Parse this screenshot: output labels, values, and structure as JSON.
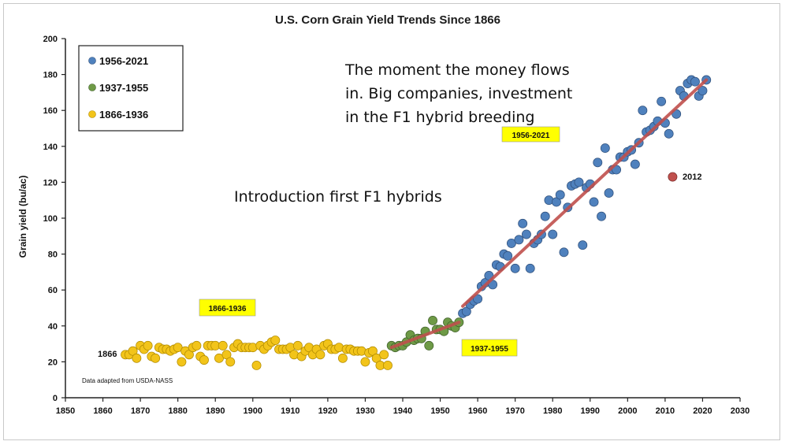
{
  "chart_data": {
    "type": "scatter",
    "title": "U.S. Corn Grain Yield Trends Since 1866",
    "ylabel": "Grain yield (bu/ac)",
    "xlabel": "",
    "xlim": [
      1850,
      2030
    ],
    "ylim": [
      0,
      200
    ],
    "x_ticks": [
      1850,
      1860,
      1870,
      1880,
      1890,
      1900,
      1910,
      1920,
      1930,
      1940,
      1950,
      1960,
      1970,
      1980,
      1990,
      2000,
      2010,
      2020,
      2030
    ],
    "y_ticks": [
      0,
      20,
      40,
      60,
      80,
      100,
      120,
      140,
      160,
      180,
      200
    ],
    "grid": false,
    "legend_position": "top-left",
    "series": [
      {
        "name": "1956-2021",
        "color": "#4f81bd",
        "x": [
          1956,
          1957,
          1958,
          1959,
          1960,
          1961,
          1962,
          1963,
          1964,
          1965,
          1966,
          1967,
          1968,
          1969,
          1970,
          1971,
          1972,
          1973,
          1974,
          1975,
          1976,
          1977,
          1978,
          1979,
          1980,
          1981,
          1982,
          1983,
          1984,
          1985,
          1986,
          1987,
          1988,
          1989,
          1990,
          1991,
          1992,
          1993,
          1994,
          1995,
          1996,
          1997,
          1998,
          1999,
          2000,
          2001,
          2002,
          2003,
          2004,
          2005,
          2006,
          2007,
          2008,
          2009,
          2010,
          2011,
          2013,
          2014,
          2015,
          2016,
          2017,
          2018,
          2019,
          2020,
          2021
        ],
        "y": [
          47,
          48,
          52,
          54,
          55,
          62,
          64,
          68,
          63,
          74,
          73,
          80,
          79,
          86,
          72,
          88,
          97,
          91,
          72,
          86,
          88,
          91,
          101,
          110,
          91,
          109,
          113,
          81,
          106,
          118,
          119,
          120,
          85,
          117,
          119,
          109,
          131,
          101,
          139,
          114,
          127,
          127,
          134,
          134,
          137,
          138,
          130,
          142,
          160,
          148,
          149,
          151,
          154,
          165,
          153,
          147,
          158,
          171,
          168,
          175,
          177,
          176,
          168,
          171,
          177
        ]
      },
      {
        "name": "1937-1955",
        "color": "#6e9a46",
        "x": [
          1937,
          1938,
          1939,
          1940,
          1941,
          1942,
          1943,
          1944,
          1945,
          1946,
          1947,
          1948,
          1949,
          1950,
          1951,
          1952,
          1953,
          1954,
          1955
        ],
        "y": [
          29,
          28,
          29,
          29,
          31,
          35,
          32,
          33,
          33,
          37,
          29,
          43,
          38,
          38,
          37,
          42,
          40,
          39,
          42
        ]
      },
      {
        "name": "1866-1936",
        "color": "#f2c41a",
        "x": [
          1866,
          1867,
          1868,
          1869,
          1870,
          1871,
          1872,
          1873,
          1874,
          1875,
          1876,
          1877,
          1878,
          1879,
          1880,
          1881,
          1882,
          1883,
          1884,
          1885,
          1886,
          1887,
          1888,
          1889,
          1890,
          1891,
          1892,
          1893,
          1894,
          1895,
          1896,
          1897,
          1898,
          1899,
          1900,
          1901,
          1902,
          1903,
          1904,
          1905,
          1906,
          1907,
          1908,
          1909,
          1910,
          1911,
          1912,
          1913,
          1914,
          1915,
          1916,
          1917,
          1918,
          1919,
          1920,
          1921,
          1922,
          1923,
          1924,
          1925,
          1926,
          1927,
          1928,
          1929,
          1930,
          1931,
          1932,
          1933,
          1934,
          1935,
          1936
        ],
        "y": [
          24,
          24,
          26,
          22,
          29,
          27,
          29,
          23,
          22,
          28,
          27,
          27,
          26,
          27,
          28,
          20,
          26,
          24,
          28,
          29,
          23,
          21,
          29,
          29,
          29,
          22,
          29,
          24,
          20,
          28,
          30,
          28,
          28,
          28,
          28,
          18,
          29,
          27,
          29,
          31,
          32,
          27,
          27,
          27,
          28,
          24,
          29,
          23,
          26,
          28,
          24,
          27,
          24,
          29,
          30,
          27,
          27,
          28,
          22,
          27,
          27,
          26,
          26,
          26,
          20,
          25,
          26,
          22,
          18,
          24,
          18
        ]
      },
      {
        "name": "2012",
        "color": "#c0504d",
        "x": [
          2012
        ],
        "y": [
          123
        ]
      }
    ],
    "trend_lines": [
      {
        "color": "#c0504d",
        "x": [
          1956,
          2021
        ],
        "y": [
          51,
          177
        ]
      },
      {
        "color": "#c0504d",
        "x": [
          1937,
          1955
        ],
        "y": [
          28,
          42
        ]
      }
    ],
    "annotations": {
      "tag_1956": "1956-2021",
      "tag_1937": "1937-1955",
      "tag_1866": "1866-1936",
      "point_1866": "1866",
      "point_2012": "2012",
      "source": "Data adapted from USDA-NASS",
      "note_top": [
        "The moment the money flows",
        "in. Big companies, investment",
        "in the F1 hybrid breeding"
      ],
      "note_mid": "Introduction first F1 hybrids"
    },
    "legend": [
      "1956-2021",
      "1937-1955",
      "1866-1936"
    ]
  }
}
